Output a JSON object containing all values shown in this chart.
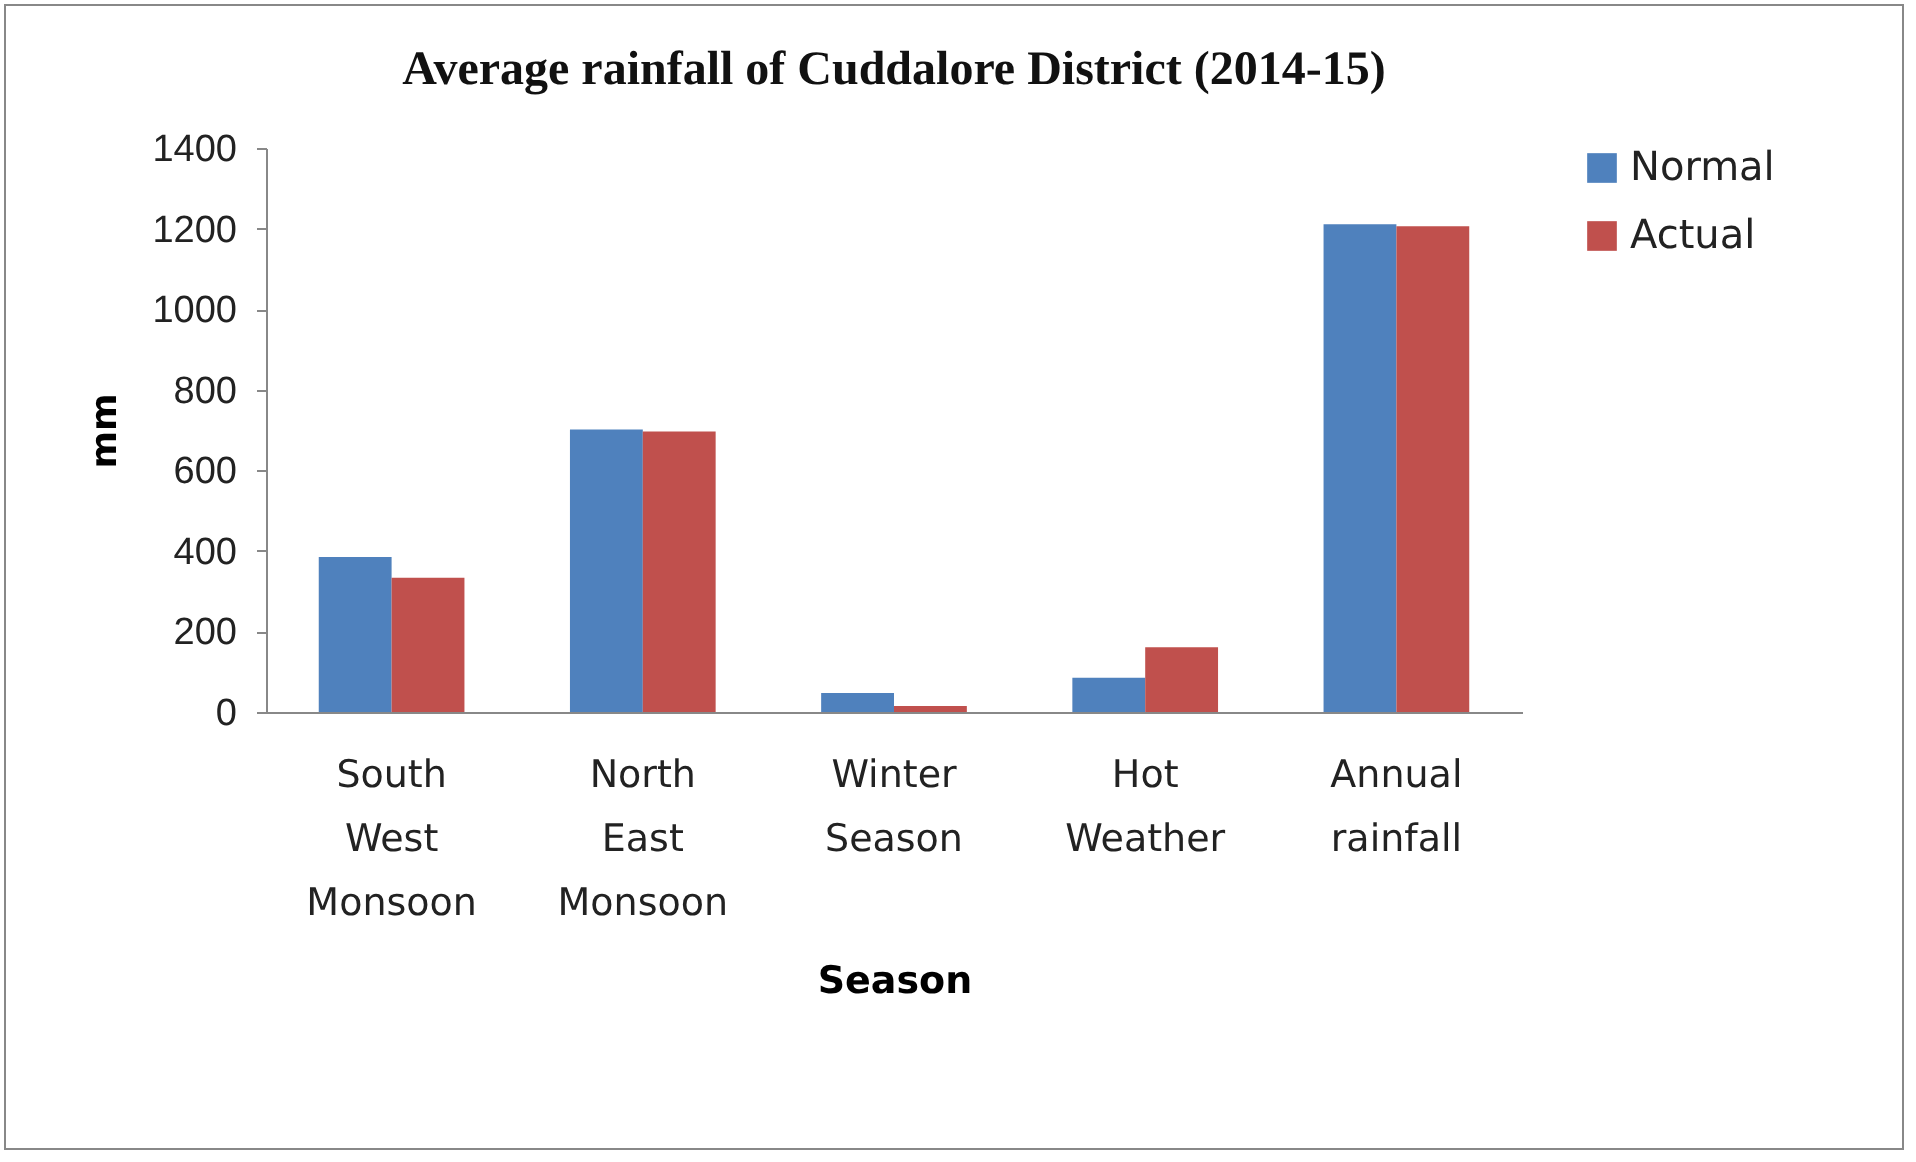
{
  "chart_data": {
    "type": "bar",
    "title": "Average rainfall of Cuddalore District (2014-15)",
    "xlabel": "Season",
    "ylabel": "mm",
    "categories": [
      "South West Monsoon",
      "North East Monsoon",
      "Winter Season",
      "Hot Weather",
      "Annual rainfall"
    ],
    "series": [
      {
        "name": "Normal",
        "color": "#4f81bd",
        "values": [
          385,
          701,
          47,
          85,
          1211
        ]
      },
      {
        "name": "Actual",
        "color": "#c0504d",
        "values": [
          333,
          696,
          15,
          161,
          1206
        ]
      }
    ],
    "ylim": [
      0,
      1400
    ],
    "yticks": [
      0,
      200,
      400,
      600,
      800,
      1000,
      1200,
      1400
    ],
    "grid": false,
    "legend": "right"
  }
}
